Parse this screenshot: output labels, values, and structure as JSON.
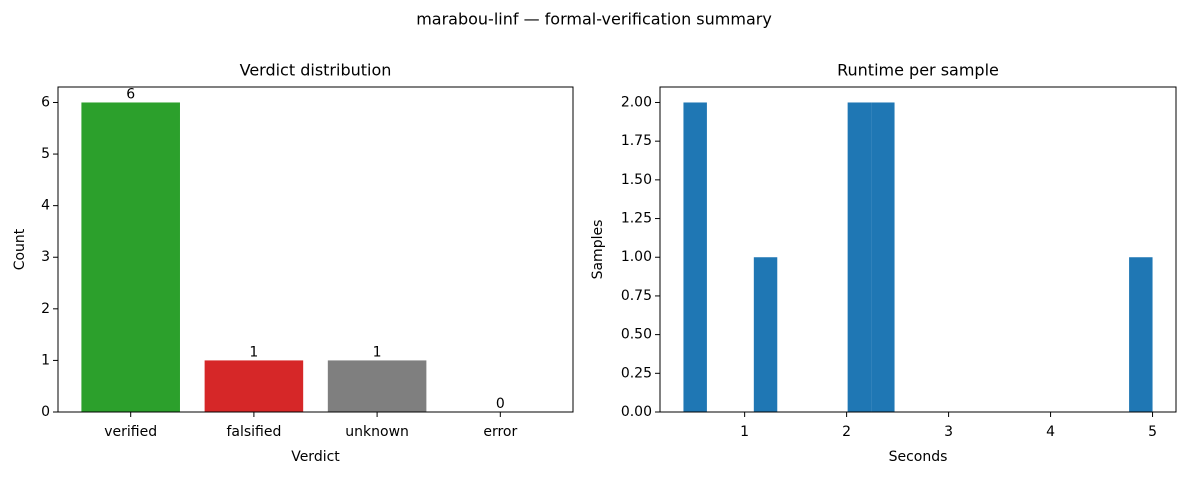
{
  "title": "marabou-linf — formal-verification summary",
  "chart_data": [
    {
      "type": "bar",
      "title": "Verdict distribution",
      "xlabel": "Verdict",
      "ylabel": "Count",
      "categories": [
        "verified",
        "falsified",
        "unknown",
        "error"
      ],
      "values": [
        6,
        1,
        1,
        0
      ],
      "colors": [
        "#2ca02c",
        "#d62728",
        "#7f7f7f",
        "#1f77b4"
      ],
      "ylim": [
        0,
        6.3
      ],
      "yticks": [
        0,
        1,
        2,
        3,
        4,
        5,
        6
      ],
      "grid": false
    },
    {
      "type": "histogram",
      "title": "Runtime per sample",
      "xlabel": "Seconds",
      "ylabel": "Samples",
      "bins": [
        0.4,
        0.63,
        0.86,
        1.09,
        1.32,
        1.55,
        1.78,
        2.01,
        2.24,
        2.47,
        2.7,
        2.93,
        3.16,
        3.39,
        3.62,
        3.85,
        4.08,
        4.31,
        4.54,
        4.77,
        5.0
      ],
      "counts": [
        2,
        0,
        0,
        1,
        0,
        0,
        0,
        2,
        2,
        0,
        0,
        0,
        0,
        0,
        0,
        0,
        0,
        0,
        0,
        1
      ],
      "color": "#1f77b4",
      "xlim": [
        0.17,
        5.23
      ],
      "xticks": [
        1,
        2,
        3,
        4,
        5
      ],
      "ylim": [
        0,
        2.1
      ],
      "yticks": [
        {
          "value": 0,
          "label": "0.00"
        },
        {
          "value": 0.25,
          "label": "0.25"
        },
        {
          "value": 0.5,
          "label": "0.50"
        },
        {
          "value": 0.75,
          "label": "0.75"
        },
        {
          "value": 1,
          "label": "1.00"
        },
        {
          "value": 1.25,
          "label": "1.25"
        },
        {
          "value": 1.5,
          "label": "1.50"
        },
        {
          "value": 1.75,
          "label": "1.75"
        },
        {
          "value": 2,
          "label": "2.00"
        }
      ],
      "grid": false
    }
  ]
}
